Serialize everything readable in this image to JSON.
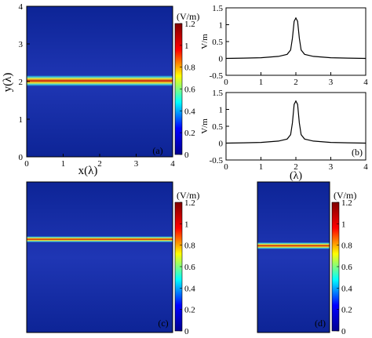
{
  "colors": {
    "field_background": "#1a2ea8",
    "field_dark": "#0d2496",
    "beam_red": "#c8150c",
    "beam_yellow": "#f3e62b",
    "beam_cyan": "#35c6e8",
    "line": "#000000"
  },
  "colormap": {
    "unit_label": "(V/m)",
    "ticks": [
      "1.2",
      "1",
      "0.8",
      "0.6",
      "0.4",
      "0.2",
      "0"
    ],
    "range": [
      0,
      1.2
    ],
    "stops": [
      "#00008f",
      "#0000ff",
      "#00ffff",
      "#ffff00",
      "#ff0000",
      "#800000"
    ]
  },
  "chart_data": [
    {
      "id": "a",
      "type": "heatmap",
      "panel_label": "(a)",
      "xlabel": "x(λ)",
      "ylabel": "y(λ)",
      "xlim": [
        0,
        4
      ],
      "ylim": [
        0,
        4
      ],
      "x_ticks": [
        "0",
        "1",
        "2",
        "3",
        "4"
      ],
      "y_ticks": [
        "0",
        "1",
        "2",
        "3",
        "4"
      ],
      "beam_center_y": 2.0,
      "peak_value": 1.2,
      "colorbar": "colormap"
    },
    {
      "id": "b",
      "type": "line",
      "panel_label": "(b)",
      "xlabel": "(λ)",
      "subplots": [
        {
          "ylabel": "V/m",
          "xlim": [
            0,
            4
          ],
          "ylim": [
            -0.5,
            1.5
          ],
          "x_ticks": [
            "0",
            "1",
            "2",
            "3",
            "4"
          ],
          "y_ticks": [
            "1.5",
            "1",
            "0.5",
            "0",
            "-0.5"
          ],
          "series": [
            {
              "x": [
                0,
                0.5,
                1.0,
                1.5,
                1.75,
                1.85,
                1.9,
                1.95,
                2.0,
                2.05,
                2.1,
                2.15,
                2.25,
                2.5,
                3.0,
                3.5,
                4.0
              ],
              "y": [
                0.0,
                0.01,
                0.02,
                0.06,
                0.12,
                0.25,
                0.6,
                1.1,
                1.2,
                1.1,
                0.6,
                0.25,
                0.12,
                0.06,
                0.02,
                0.01,
                0.0
              ]
            }
          ]
        },
        {
          "ylabel": "V/m",
          "xlim": [
            0,
            4
          ],
          "ylim": [
            -0.5,
            1.5
          ],
          "x_ticks": [
            "0",
            "1",
            "2",
            "3",
            "4"
          ],
          "y_ticks": [
            "1.5",
            "1",
            "0.5",
            "0",
            "-0.5"
          ],
          "series": [
            {
              "x": [
                0,
                0.5,
                1.0,
                1.5,
                1.75,
                1.85,
                1.9,
                1.95,
                2.0,
                2.05,
                2.1,
                2.15,
                2.25,
                2.5,
                3.0,
                3.5,
                4.0
              ],
              "y": [
                0.0,
                0.01,
                0.02,
                0.06,
                0.12,
                0.25,
                0.6,
                1.15,
                1.25,
                1.15,
                0.6,
                0.25,
                0.12,
                0.06,
                0.02,
                0.01,
                0.0
              ]
            }
          ]
        }
      ]
    },
    {
      "id": "c",
      "type": "heatmap",
      "panel_label": "(c)",
      "beam_fraction_from_top": 0.36,
      "peak_value": 1.2,
      "colorbar": "colormap"
    },
    {
      "id": "d",
      "type": "heatmap",
      "panel_label": "(d)",
      "beam_fraction_from_top": 0.4,
      "peak_value": 1.2,
      "colorbar": "colormap"
    }
  ]
}
